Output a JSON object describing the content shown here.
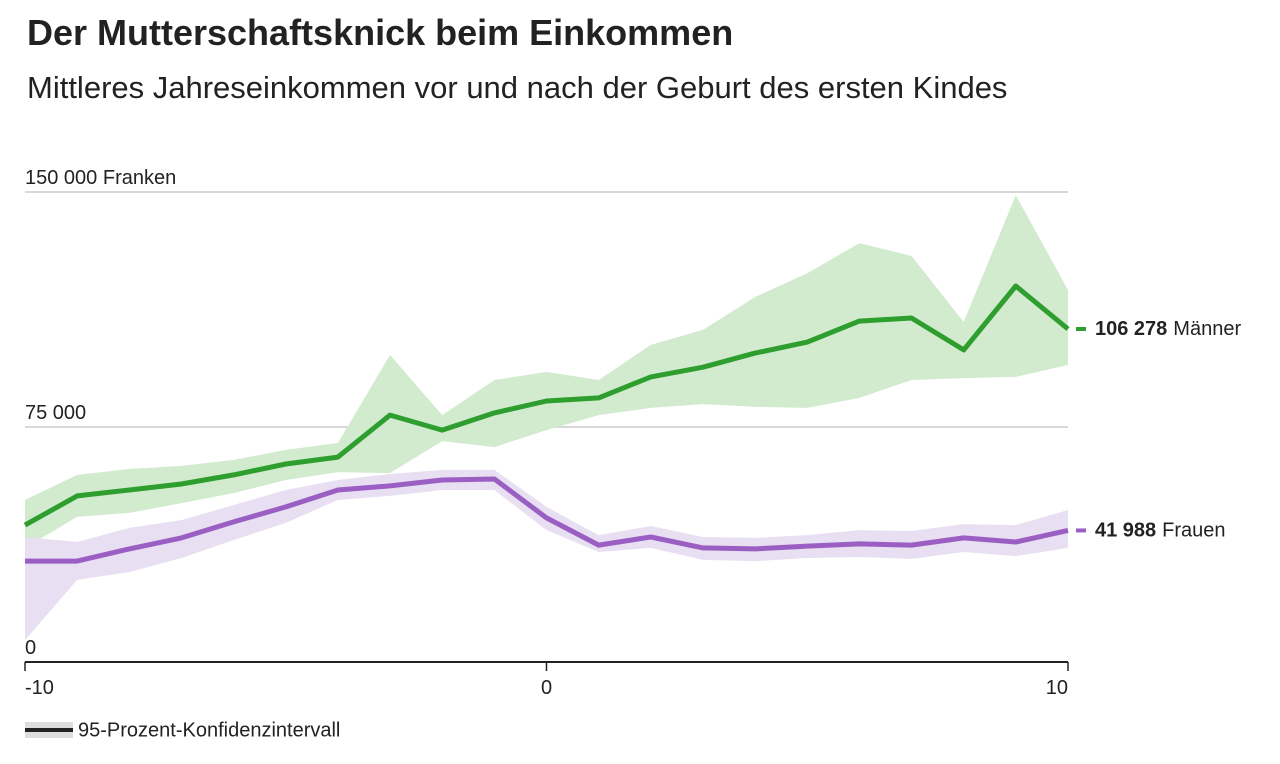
{
  "chart_data": {
    "type": "line",
    "title": "Der Mutterschaftsknick beim Einkommen",
    "subtitle": "Mittleres Jahreseinkommen vor und nach der Geburt des ersten Kindes",
    "ci_label": "95-Prozent-Konfidenzintervall",
    "x": [
      -10,
      -9,
      -8,
      -7,
      -6,
      -5,
      -4,
      -3,
      -2,
      -1,
      0,
      1,
      2,
      3,
      4,
      5,
      6,
      7,
      8,
      9,
      10
    ],
    "xlim": [
      -10,
      10
    ],
    "xticks": [
      -10,
      0,
      10
    ],
    "ylim": [
      0,
      150000
    ],
    "yticks": [
      0,
      {
        "value": 75000,
        "label": "75 000"
      },
      {
        "value": 150000,
        "label": "150 000 Franken"
      }
    ],
    "grid": true,
    "series": [
      {
        "name": "Männer",
        "color": "#2e9e2e",
        "band_color": "#d2ebcf",
        "values": [
          43700,
          53000,
          54900,
          56800,
          59700,
          63200,
          65400,
          78800,
          74000,
          79500,
          83300,
          84300,
          91000,
          94100,
          98600,
          102100,
          108800,
          109800,
          99600,
          120000,
          106278
        ],
        "upper": [
          51700,
          59700,
          61600,
          62600,
          64500,
          67700,
          69900,
          98000,
          78800,
          90000,
          92600,
          90000,
          101200,
          106000,
          116500,
          124100,
          133700,
          129600,
          108500,
          149000,
          118700
        ],
        "lower": [
          36400,
          46300,
          47600,
          50700,
          53900,
          58100,
          60600,
          60300,
          70500,
          68600,
          74000,
          78800,
          81100,
          82300,
          81400,
          81100,
          84300,
          90000,
          90600,
          91000,
          94800
        ],
        "value_labels": [
          null,
          null,
          null,
          null,
          null,
          null,
          null,
          null,
          null,
          null,
          null,
          null,
          null,
          null,
          null,
          null,
          null,
          null,
          null,
          null,
          "106 278"
        ]
      },
      {
        "name": "Frauen",
        "color": "#9b5fc4",
        "band_color": "#e8dff2",
        "values": [
          32200,
          32200,
          36100,
          39600,
          44700,
          49500,
          54900,
          56200,
          58100,
          58400,
          46000,
          37300,
          39900,
          36400,
          36100,
          37000,
          37700,
          37300,
          39600,
          38300,
          41988
        ],
        "upper": [
          39900,
          38300,
          42800,
          45300,
          50100,
          54900,
          58100,
          60000,
          61300,
          61300,
          49500,
          40500,
          43400,
          39900,
          39600,
          40500,
          42100,
          41800,
          44000,
          43700,
          48500
        ],
        "lower": [
          7000,
          26200,
          28700,
          33200,
          38900,
          44400,
          51700,
          53000,
          54900,
          54900,
          42100,
          35100,
          36400,
          32600,
          32200,
          33200,
          33500,
          32900,
          35100,
          33800,
          36400
        ],
        "value_labels": [
          null,
          null,
          null,
          null,
          null,
          null,
          null,
          null,
          null,
          null,
          null,
          null,
          null,
          null,
          null,
          null,
          null,
          null,
          null,
          null,
          "41 988"
        ]
      }
    ]
  }
}
